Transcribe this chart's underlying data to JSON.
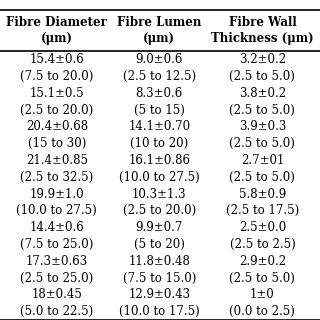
{
  "headers": [
    "Fibre Diameter\n(μm)",
    "Fibre Lumen\n(μm)",
    "Fibre Wall\nThickness (μm)"
  ],
  "rows": [
    [
      "15.4±0.6",
      "9.0±0.6",
      "3.2±0.2"
    ],
    [
      "(7.5 to 20.0)",
      "(2.5 to 12.5)",
      "(2.5 to 5.0)"
    ],
    [
      "15.1±0.5",
      "8.3±0.6",
      "3.8±0.2"
    ],
    [
      "(2.5 to 20.0)",
      "(5 to 15)",
      "(2.5 to 5.0)"
    ],
    [
      "20.4±0.68",
      "14.1±0.70",
      "3.9±0.3"
    ],
    [
      "(15 to 30)",
      "(10 to 20)",
      "(2.5 to 5.0)"
    ],
    [
      "21.4±0.85",
      "16.1±0.86",
      "2.7±01"
    ],
    [
      "(2.5 to 32.5)",
      "(10.0 to 27.5)",
      "(2.5 to 5.0)"
    ],
    [
      "19.9±1.0",
      "10.3±1.3",
      "5.8±0.9"
    ],
    [
      "(10.0 to 27.5)",
      "(2.5 to 20.0)",
      "(2.5 to 17.5)"
    ],
    [
      "14.4±0.6",
      "9.9±0.7",
      "2.5±0.0"
    ],
    [
      "(7.5 to 25.0)",
      "(5 to 20)",
      "(2.5 to 2.5)"
    ],
    [
      "17.3±0.63",
      "11.8±0.48",
      "2.9±0.2"
    ],
    [
      "(2.5 to 25.0)",
      "(7.5 to 15.0)",
      "(2.5 to 5.0)"
    ],
    [
      "18±0.45",
      "12.9±0.43",
      "1±0"
    ],
    [
      "(5.0 to 22.5)",
      "(10.0 to 17.5)",
      "(0.0 to 2.5)"
    ]
  ],
  "bold_rows": [
    0,
    2,
    4,
    6,
    8,
    10,
    12,
    14
  ],
  "background_color": "#ffffff",
  "header_fontsize": 8.5,
  "data_fontsize": 8.5,
  "line_color": "black",
  "line_width": 1.2
}
